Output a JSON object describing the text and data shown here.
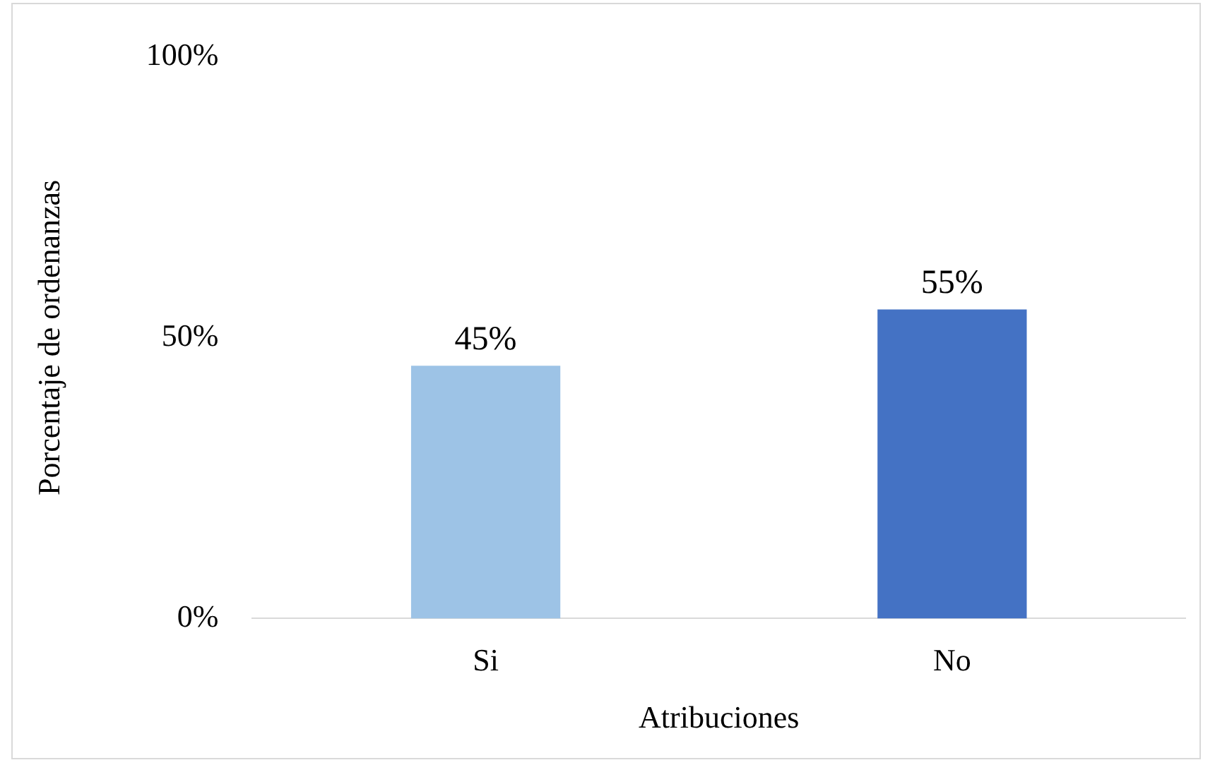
{
  "chart_data": {
    "type": "bar",
    "xlabel": "Atribuciones",
    "ylabel": "Porcentaje de ordenanzas",
    "categories": [
      "Si",
      "No"
    ],
    "values": [
      45,
      55
    ],
    "colors": [
      "#9dc3e6",
      "#4472c4"
    ],
    "value_labels": [
      "45%",
      "55%"
    ],
    "ylim": [
      0,
      100
    ],
    "yticks": [
      {
        "value": 0,
        "label": "0%"
      },
      {
        "value": 50,
        "label": "50%"
      },
      {
        "value": 100,
        "label": "100%"
      }
    ],
    "grid": false,
    "legend": false
  }
}
